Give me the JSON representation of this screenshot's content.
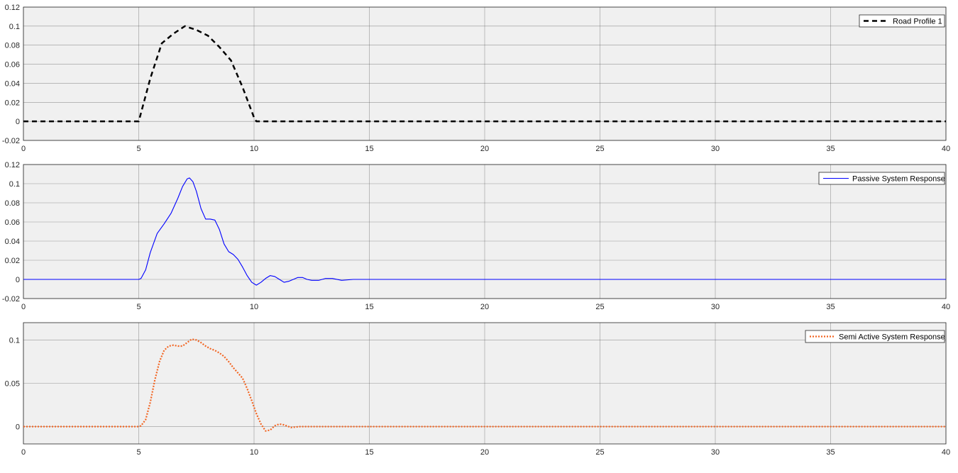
{
  "colors": {
    "background": "#ffffff",
    "axes_face": "#f0f0f0",
    "grid": "#4d4d4d",
    "axis": "#262626"
  },
  "chart_data": [
    {
      "type": "line",
      "xlim": [
        0,
        40
      ],
      "ylim": [
        -0.02,
        0.12
      ],
      "xticks": [
        0,
        5,
        10,
        15,
        20,
        25,
        30,
        35,
        40
      ],
      "yticks": [
        -0.02,
        0,
        0.02,
        0.04,
        0.06,
        0.08,
        0.1,
        0.12
      ],
      "ytick_labels": [
        "-0.02",
        "0",
        "0.02",
        "0.04",
        "0.06",
        "0.08",
        "0.1",
        "0.12"
      ],
      "grid": true,
      "legend_position": "top-right",
      "series": [
        {
          "name": "Road Profile 1",
          "color": "#000000",
          "style": "dashed",
          "x": [
            0,
            5,
            5.5,
            6,
            6.5,
            7,
            7.5,
            8,
            8.5,
            9,
            9.5,
            10,
            10.1,
            15,
            20,
            25,
            30,
            35,
            40
          ],
          "y": [
            0,
            0,
            0.045,
            0.082,
            0.092,
            0.1,
            0.096,
            0.09,
            0.078,
            0.064,
            0.036,
            0.004,
            0,
            0,
            0,
            0,
            0,
            0,
            0
          ]
        }
      ]
    },
    {
      "type": "line",
      "xlim": [
        0,
        40
      ],
      "ylim": [
        -0.02,
        0.12
      ],
      "xticks": [
        0,
        5,
        10,
        15,
        20,
        25,
        30,
        35,
        40
      ],
      "yticks": [
        -0.02,
        0,
        0.02,
        0.04,
        0.06,
        0.08,
        0.1,
        0.12
      ],
      "ytick_labels": [
        "-0.02",
        "0",
        "0.02",
        "0.04",
        "0.06",
        "0.08",
        "0.1",
        "0.12"
      ],
      "grid": true,
      "legend_position": "top-right",
      "series": [
        {
          "name": "Passive System Response",
          "color": "#0000ff",
          "style": "solid",
          "x": [
            0,
            5,
            5.1,
            5.3,
            5.5,
            5.8,
            6.1,
            6.4,
            6.7,
            6.9,
            7.1,
            7.2,
            7.35,
            7.5,
            7.7,
            7.9,
            8.1,
            8.3,
            8.5,
            8.7,
            8.9,
            9.1,
            9.3,
            9.5,
            9.7,
            9.9,
            10.1,
            10.3,
            10.5,
            10.7,
            10.9,
            11.1,
            11.3,
            11.5,
            11.7,
            11.9,
            12.1,
            12.3,
            12.5,
            12.8,
            13.1,
            13.4,
            13.8,
            14.3,
            15,
            16,
            20,
            25,
            30,
            35,
            40
          ],
          "y": [
            0,
            0,
            0.001,
            0.01,
            0.028,
            0.048,
            0.058,
            0.069,
            0.085,
            0.097,
            0.105,
            0.106,
            0.102,
            0.092,
            0.074,
            0.063,
            0.063,
            0.062,
            0.052,
            0.037,
            0.029,
            0.026,
            0.021,
            0.013,
            0.004,
            -0.003,
            -0.006,
            -0.003,
            0.001,
            0.004,
            0.003,
            0,
            -0.003,
            -0.002,
            0,
            0.002,
            0.002,
            0,
            -0.001,
            -0.001,
            0.001,
            0.001,
            -0.001,
            0,
            0,
            0,
            0,
            0,
            0,
            0,
            0
          ]
        }
      ]
    },
    {
      "type": "line",
      "xlim": [
        0,
        40
      ],
      "ylim": [
        -0.02,
        0.12
      ],
      "xticks": [
        0,
        5,
        10,
        15,
        20,
        25,
        30,
        35,
        40
      ],
      "yticks": [
        0,
        0.05,
        0.1
      ],
      "ytick_labels": [
        "0",
        "0.05",
        "0.1"
      ],
      "grid": true,
      "legend_position": "top-right",
      "series": [
        {
          "name": "Semi Active System Response",
          "color": "#f26522",
          "style": "dotted",
          "x": [
            0,
            5,
            5.1,
            5.3,
            5.5,
            5.7,
            5.9,
            6.1,
            6.3,
            6.5,
            6.7,
            6.9,
            7.1,
            7.3,
            7.5,
            7.7,
            7.9,
            8.1,
            8.3,
            8.5,
            8.7,
            8.9,
            9.1,
            9.3,
            9.5,
            9.7,
            9.9,
            10.1,
            10.3,
            10.5,
            10.7,
            10.9,
            11.1,
            11.3,
            11.6,
            12,
            13,
            15,
            20,
            25,
            30,
            35,
            40
          ],
          "y": [
            0,
            0,
            0.001,
            0.008,
            0.028,
            0.054,
            0.075,
            0.088,
            0.093,
            0.094,
            0.093,
            0.093,
            0.097,
            0.101,
            0.1,
            0.097,
            0.093,
            0.09,
            0.088,
            0.085,
            0.081,
            0.075,
            0.068,
            0.062,
            0.056,
            0.044,
            0.03,
            0.015,
            0.003,
            -0.005,
            -0.004,
            0.001,
            0.003,
            0.002,
            -0.001,
            0,
            0,
            0,
            0,
            0,
            0,
            0,
            0
          ]
        }
      ]
    }
  ]
}
